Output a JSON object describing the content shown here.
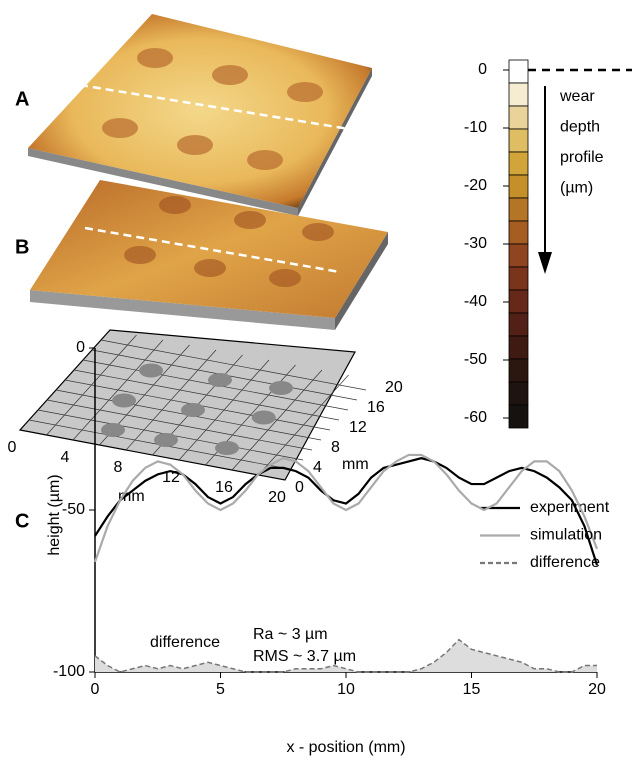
{
  "panel_labels": [
    "A",
    "B",
    "C"
  ],
  "colorbar": {
    "ticks": [
      0,
      -10,
      -20,
      -30,
      -40,
      -50,
      -60
    ],
    "label": [
      "wear",
      "depth",
      "profile",
      "(µm)"
    ],
    "colors": [
      "#ffffff",
      "#f6ecd2",
      "#ead39a",
      "#dfbd63",
      "#d2a53a",
      "#c58f2a",
      "#b47526",
      "#a65d22",
      "#8f4620",
      "#7a341c",
      "#652819",
      "#522016",
      "#3e1a13",
      "#2c1610",
      "#1e130e",
      "#151210"
    ]
  },
  "map_axes": {
    "xticks": [
      0,
      4,
      8,
      12,
      16,
      20
    ],
    "yticks": [
      0,
      4,
      8,
      12,
      16,
      20
    ],
    "xlabel": "mm",
    "ylabel": "mm"
  },
  "chart_data": {
    "type": "line",
    "xlabel": "x - position (mm)",
    "ylabel": "height (µm)",
    "x": [
      0,
      0.5,
      1,
      1.5,
      2,
      2.5,
      3,
      3.5,
      4,
      4.5,
      5,
      5.5,
      6,
      6.5,
      7,
      7.5,
      8,
      8.5,
      9,
      9.5,
      10,
      10.5,
      11,
      11.5,
      12,
      12.5,
      13,
      13.5,
      14,
      14.5,
      15,
      15.5,
      16,
      16.5,
      17,
      17.5,
      18,
      18.5,
      19,
      19.5,
      20
    ],
    "series": [
      {
        "name": "experiment",
        "color": "#000000",
        "style": "solid",
        "values": [
          -58,
          -52,
          -47,
          -44,
          -41,
          -39,
          -38,
          -39,
          -42,
          -46,
          -48,
          -46,
          -42,
          -39,
          -37,
          -37,
          -38,
          -40,
          -44,
          -47,
          -48,
          -45,
          -40,
          -37,
          -36,
          -35,
          -34,
          -35,
          -37,
          -40,
          -42,
          -42,
          -40,
          -38,
          -37,
          -38,
          -40,
          -43,
          -47,
          -55,
          -67
        ]
      },
      {
        "name": "simulation",
        "color": "#aaaaaa",
        "style": "solid",
        "values": [
          -66,
          -55,
          -47,
          -41,
          -37,
          -35,
          -36,
          -39,
          -44,
          -48,
          -50,
          -48,
          -44,
          -39,
          -36,
          -34,
          -35,
          -38,
          -43,
          -48,
          -50,
          -48,
          -43,
          -38,
          -35,
          -33,
          -33,
          -35,
          -39,
          -44,
          -48,
          -50,
          -48,
          -43,
          -38,
          -35,
          -35,
          -38,
          -44,
          -52,
          -62
        ]
      },
      {
        "name": "difference",
        "color": "#777777",
        "style": "dashed",
        "fill": "#dddddd",
        "values": [
          -95,
          -98,
          -100,
          -99,
          -98,
          -99,
          -98,
          -99,
          -98,
          -97,
          -98,
          -99,
          -100,
          -100,
          -100,
          -100,
          -99,
          -99,
          -99,
          -98,
          -99,
          -100,
          -100,
          -100,
          -100,
          -100,
          -99,
          -97,
          -94,
          -90,
          -93,
          -94,
          -95,
          -96,
          -97,
          -99,
          -99,
          -100,
          -100,
          -98,
          -98
        ]
      }
    ],
    "xlim": [
      0,
      20
    ],
    "ylim": [
      -100,
      0
    ],
    "xticks": [
      0,
      5,
      10,
      15,
      20
    ],
    "yticks": [
      -100,
      -50,
      0
    ],
    "legend": "upper right",
    "annotations": [
      "difference",
      "Ra ~ 3 µm",
      "RMS ~ 3.7 µm"
    ]
  }
}
